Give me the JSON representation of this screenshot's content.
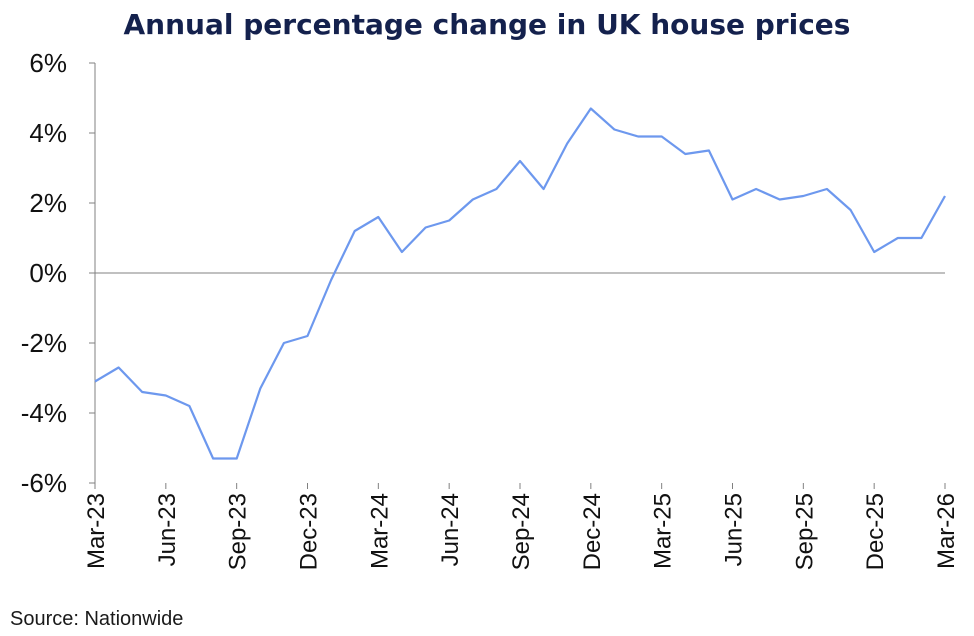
{
  "chart_data": {
    "type": "line",
    "title": "Annual percentage change in UK house prices",
    "source": "Source: Nationwide",
    "xlabel": "",
    "ylabel": "",
    "ylim": [
      -6,
      6
    ],
    "y_ticks": [
      "6%",
      "4%",
      "2%",
      "0%",
      "-2%",
      "-4%",
      "-6%"
    ],
    "x_tick_labels": [
      "Mar-23",
      "Jun-23",
      "Sep-23",
      "Dec-23",
      "Mar-24",
      "Jun-24",
      "Sep-24",
      "Dec-24",
      "Mar-25",
      "Jun-25",
      "Sep-25",
      "Dec-25",
      "Mar-26"
    ],
    "grid": false,
    "legend": "none",
    "line_color": "#6d98ee",
    "x": [
      "Mar-23",
      "Apr-23",
      "May-23",
      "Jun-23",
      "Jul-23",
      "Aug-23",
      "Sep-23",
      "Oct-23",
      "Nov-23",
      "Dec-23",
      "Jan-24",
      "Feb-24",
      "Mar-24",
      "Apr-24",
      "May-24",
      "Jun-24",
      "Jul-24",
      "Aug-24",
      "Sep-24",
      "Oct-24",
      "Nov-24",
      "Dec-24",
      "Jan-25",
      "Feb-25",
      "Mar-25",
      "Apr-25",
      "May-25",
      "Jun-25",
      "Jul-25",
      "Aug-25",
      "Sep-25",
      "Oct-25",
      "Nov-25",
      "Dec-25",
      "Jan-26",
      "Feb-26",
      "Mar-26"
    ],
    "series": [
      {
        "values": [
          -3.1,
          -2.7,
          -3.4,
          -3.5,
          -3.8,
          -5.3,
          -5.3,
          -3.3,
          -2.0,
          -1.8,
          -0.2,
          1.2,
          1.6,
          0.6,
          1.3,
          1.5,
          2.1,
          2.4,
          3.2,
          2.4,
          3.7,
          4.7,
          4.1,
          3.9,
          3.9,
          3.4,
          3.5,
          2.1,
          2.4,
          2.1,
          2.2,
          2.4,
          1.8,
          0.6,
          1.0,
          1.0,
          2.2
        ]
      }
    ]
  }
}
